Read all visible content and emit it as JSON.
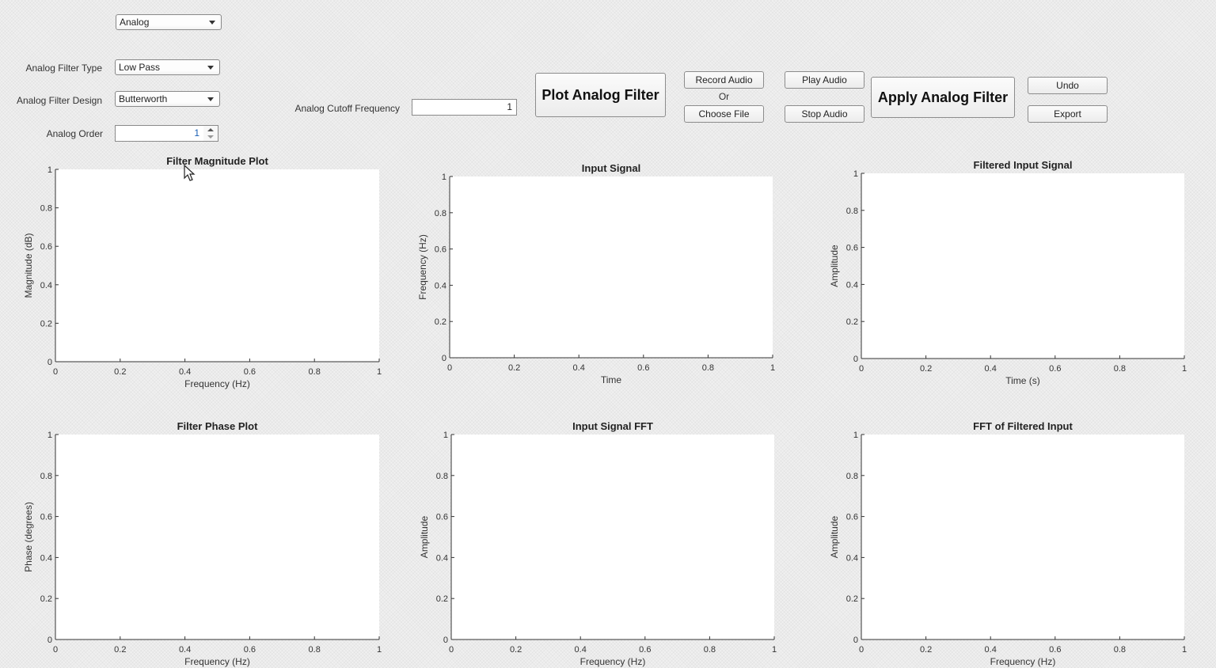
{
  "mode_select": {
    "value": "Analog"
  },
  "controls": {
    "filter_type": {
      "label": "Analog Filter Type",
      "value": "Low Pass"
    },
    "filter_design": {
      "label": "Analog Filter Design",
      "value": "Butterworth"
    },
    "order": {
      "label": "Analog Order",
      "value": "1"
    },
    "cutoff": {
      "label": "Analog Cutoff Frequency",
      "value": "1"
    }
  },
  "buttons": {
    "plot": "Plot Analog Filter",
    "record": "Record Audio",
    "or_text": "Or",
    "choose_file": "Choose File",
    "play": "Play Audio",
    "stop": "Stop Audio",
    "apply": "Apply Analog Filter",
    "undo": "Undo",
    "export": "Export"
  },
  "chart_data": [
    {
      "id": "mag",
      "type": "line",
      "title": "Filter Magnitude Plot",
      "xlabel": "Frequency (Hz)",
      "ylabel": "Magnitude (dB)",
      "xlim": [
        0,
        1
      ],
      "ylim": [
        0,
        1
      ],
      "xticks": [
        "0",
        "0.2",
        "0.4",
        "0.6",
        "0.8",
        "1"
      ],
      "yticks": [
        "0",
        "0.2",
        "0.4",
        "0.6",
        "0.8",
        "1"
      ],
      "series": []
    },
    {
      "id": "in",
      "type": "line",
      "title": "Input Signal",
      "xlabel": "Time",
      "ylabel": "Frequency (Hz)",
      "xlim": [
        0,
        1
      ],
      "ylim": [
        0,
        1
      ],
      "xticks": [
        "0",
        "0.2",
        "0.4",
        "0.6",
        "0.8",
        "1"
      ],
      "yticks": [
        "0",
        "0.2",
        "0.4",
        "0.6",
        "0.8",
        "1"
      ],
      "series": []
    },
    {
      "id": "fin",
      "type": "line",
      "title": "Filtered Input Signal",
      "xlabel": "Time (s)",
      "ylabel": "Amplitude",
      "xlim": [
        0,
        1
      ],
      "ylim": [
        0,
        1
      ],
      "xticks": [
        "0",
        "0.2",
        "0.4",
        "0.6",
        "0.8",
        "1"
      ],
      "yticks": [
        "0",
        "0.2",
        "0.4",
        "0.6",
        "0.8",
        "1"
      ],
      "series": []
    },
    {
      "id": "ph",
      "type": "line",
      "title": "Filter Phase Plot",
      "xlabel": "Frequency (Hz)",
      "ylabel": "Phase (degrees)",
      "xlim": [
        0,
        1
      ],
      "ylim": [
        0,
        1
      ],
      "xticks": [
        "0",
        "0.2",
        "0.4",
        "0.6",
        "0.8",
        "1"
      ],
      "yticks": [
        "0",
        "0.2",
        "0.4",
        "0.6",
        "0.8",
        "1"
      ],
      "series": []
    },
    {
      "id": "infft",
      "type": "line",
      "title": "Input Signal FFT",
      "xlabel": "Frequency (Hz)",
      "ylabel": "Amplitude",
      "xlim": [
        0,
        1
      ],
      "ylim": [
        0,
        1
      ],
      "xticks": [
        "0",
        "0.2",
        "0.4",
        "0.6",
        "0.8",
        "1"
      ],
      "yticks": [
        "0",
        "0.2",
        "0.4",
        "0.6",
        "0.8",
        "1"
      ],
      "series": []
    },
    {
      "id": "ffft",
      "type": "line",
      "title": "FFT of Filtered Input",
      "xlabel": "Frequency (Hz)",
      "ylabel": "Amplitude",
      "xlim": [
        0,
        1
      ],
      "ylim": [
        0,
        1
      ],
      "xticks": [
        "0",
        "0.2",
        "0.4",
        "0.6",
        "0.8",
        "1"
      ],
      "yticks": [
        "0",
        "0.2",
        "0.4",
        "0.6",
        "0.8",
        "1"
      ],
      "series": []
    }
  ],
  "icons": {
    "cursor": "mouse-pointer-icon",
    "dropdown": "chevron-down-icon",
    "spinner": "spinner-arrows-icon"
  }
}
